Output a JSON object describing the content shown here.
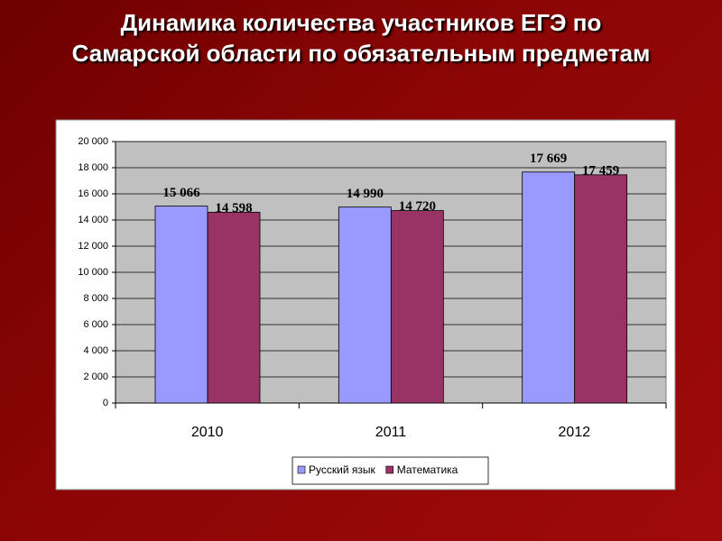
{
  "chart_data": {
    "type": "bar",
    "title": "Динамика количества участников ЕГЭ по Самарской области по обязательным предметам",
    "categories": [
      "2010",
      "2011",
      "2012"
    ],
    "series": [
      {
        "name": "Русский язык",
        "color": "#9999ff",
        "values": [
          15066,
          14990,
          17669
        ],
        "value_labels": [
          "15 066",
          "14 990",
          "17 669"
        ]
      },
      {
        "name": "Математика",
        "color": "#993366",
        "values": [
          14598,
          14720,
          17459
        ],
        "value_labels": [
          "14 598",
          "14 720",
          "17 459"
        ]
      }
    ],
    "ylim": [
      0,
      20000
    ],
    "yticks": [
      0,
      {
        "value": 2000,
        "label": "2 000"
      },
      {
        "value": 4000,
        "label": "4 000"
      },
      {
        "value": 6000,
        "label": "6 000"
      },
      {
        "value": 8000,
        "label": "8 000"
      },
      {
        "value": 10000,
        "label": "10 000"
      },
      {
        "value": 12000,
        "label": "12 000"
      },
      {
        "value": 14000,
        "label": "14 000"
      },
      {
        "value": 16000,
        "label": "16 000"
      },
      {
        "value": 18000,
        "label": "18 000"
      },
      {
        "value": 20000,
        "label": "20 000"
      }
    ],
    "grid": true,
    "legend": "bottom"
  }
}
